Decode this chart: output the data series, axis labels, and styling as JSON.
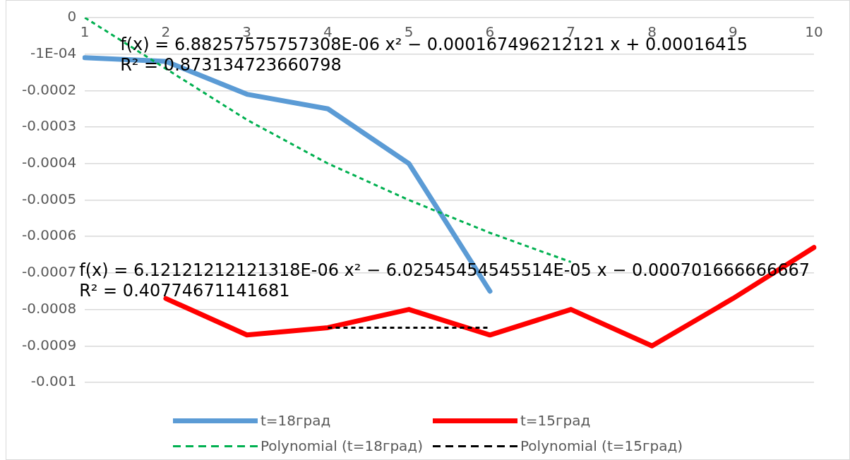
{
  "chart_data": {
    "type": "line",
    "categories": [
      "1",
      "2",
      "3",
      "4",
      "5",
      "6",
      "7",
      "8",
      "9",
      "10"
    ],
    "series": [
      {
        "name": "t=18град",
        "color": "#5b9bd5",
        "values": [
          -0.00011,
          -0.00012,
          -0.00021,
          -0.00025,
          -0.0004,
          -0.00075,
          null,
          null,
          null,
          null
        ]
      },
      {
        "name": "t=15град",
        "color": "#ff0000",
        "values": [
          null,
          -0.00077,
          -0.00087,
          -0.00085,
          -0.0008,
          -0.00087,
          -0.0008,
          -0.0009,
          -0.00077,
          -0.00063
        ]
      },
      {
        "name": "Polynomial (t=18град)",
        "color": "#00b050",
        "line_style": "dashed",
        "values": [
          0,
          -0.00014,
          -0.00028,
          -0.0004,
          -0.0005,
          -0.00059,
          -0.00067,
          null,
          null,
          null
        ]
      },
      {
        "name": "Polynomial (t=15град)",
        "color": "#000000",
        "line_style": "dashed",
        "values": [
          null,
          null,
          null,
          -0.00085,
          -0.00085,
          -0.00085,
          null,
          null,
          null,
          null
        ]
      }
    ],
    "ylim": [
      -0.001,
      0
    ],
    "yticks": [
      0,
      {
        "value": -0.0001,
        "label": "-1E-04"
      },
      -0.0002,
      -0.0003,
      -0.0004,
      -0.0005,
      -0.0006,
      -0.0007,
      -0.0008,
      -0.0009,
      -0.001
    ],
    "grid": "y",
    "legend": "bottom",
    "marker": "none",
    "line_style": "solid",
    "annotations": [
      "f(x) = 6.88257575757308E-06 x² − 0.000167496212121 x + 0.00016415\nR² = 0.873134723660798",
      "f(x) = 6.12121212121318E-06 x² − 6.02545454545514E-05 x − 0.000701666666667\nR² = 0.40774671141681"
    ]
  }
}
